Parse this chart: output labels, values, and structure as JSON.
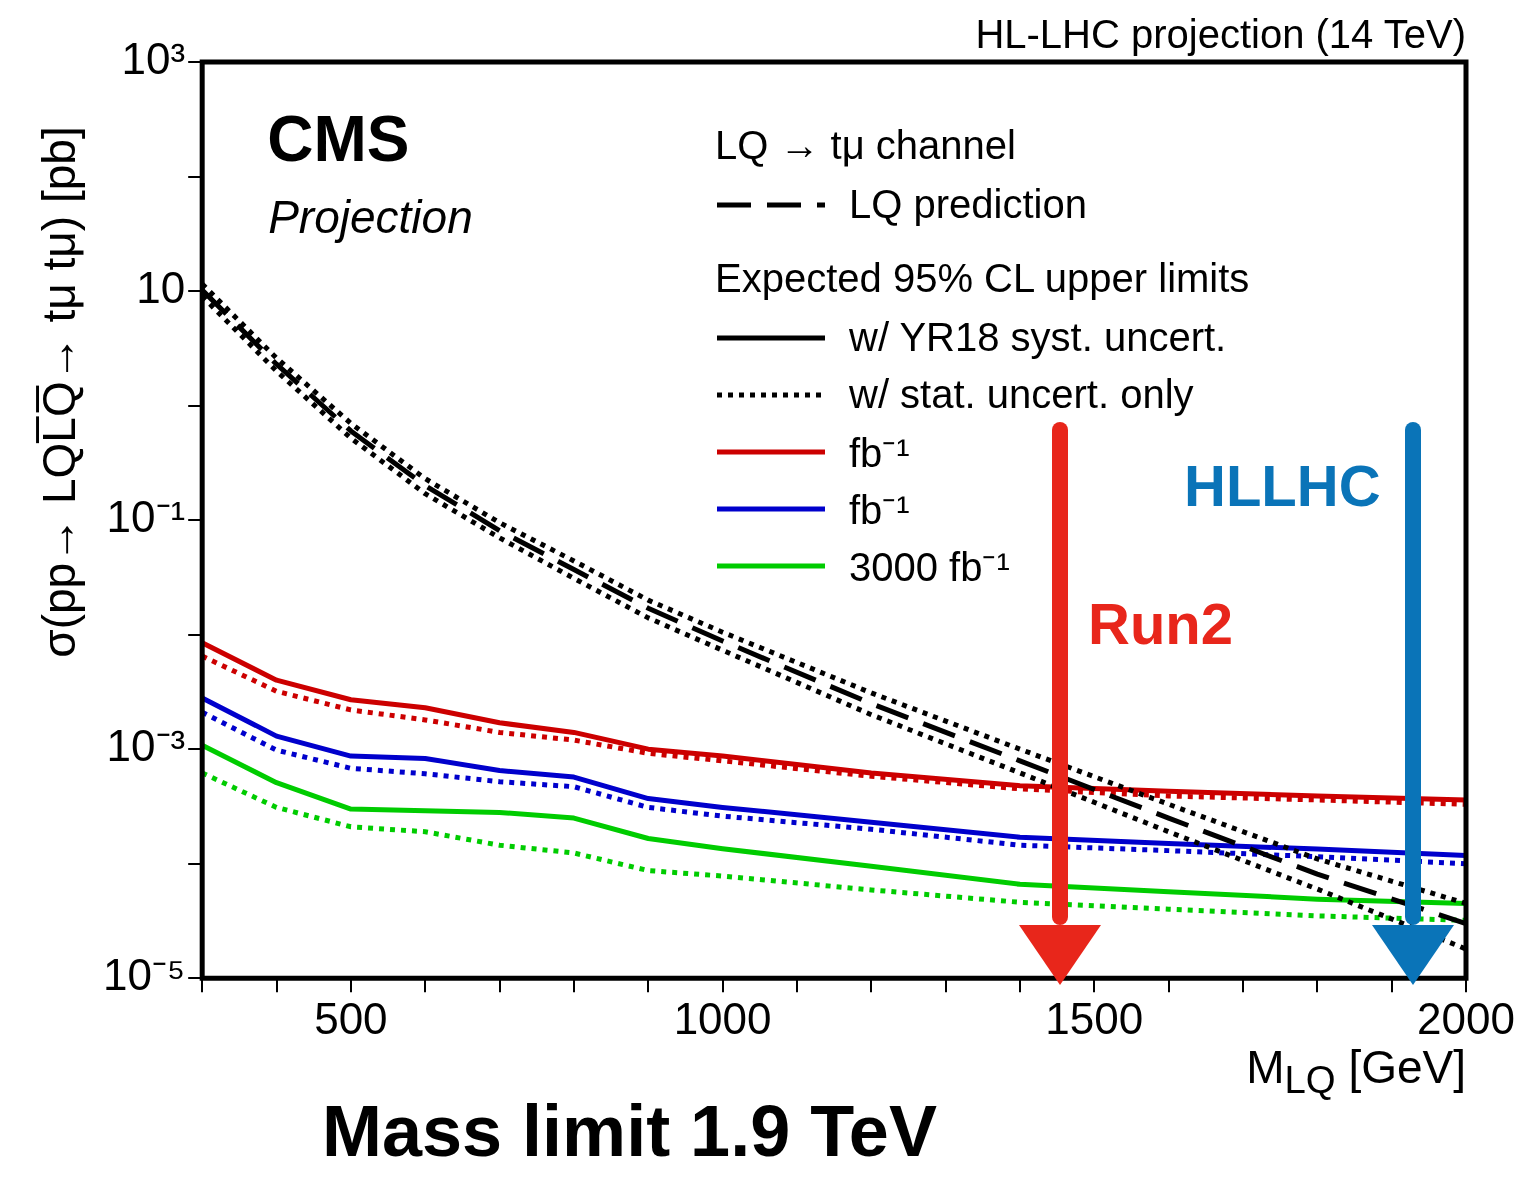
{
  "chart_data": {
    "type": "line",
    "title": "HL-LHC projection  (14 TeV)",
    "xlabel": "M$_{LQ}$ [GeV]",
    "ylabel": "σ(pp→ LQL̅Q̅→ tμ tμ) [pb]",
    "legend_title": "LQ → tμ channel",
    "legend": "top right",
    "grid": false,
    "log": "y",
    "marker": "none",
    "x": [
      300,
      400,
      500,
      600,
      700,
      800,
      900,
      1000,
      1200,
      1400,
      1600,
      1800,
      2000
    ],
    "xlim": [
      300,
      2000
    ],
    "xticks": [
      {
        "value": 300,
        "label": null
      },
      {
        "value": 400,
        "label": null
      },
      500,
      {
        "value": 600,
        "label": null
      },
      {
        "value": 700,
        "label": null
      },
      {
        "value": 800,
        "label": null
      },
      {
        "value": 900,
        "label": null
      },
      1000,
      {
        "value": 1100,
        "label": null
      },
      {
        "value": 1200,
        "label": null
      },
      {
        "value": 1300,
        "label": null
      },
      {
        "value": 1400,
        "label": null
      },
      1500,
      {
        "value": 1600,
        "label": null
      },
      {
        "value": 1700,
        "label": null
      },
      {
        "value": 1800,
        "label": null
      },
      {
        "value": 1900,
        "label": null
      },
      2000
    ],
    "ylim": [
      1e-05,
      1000
    ],
    "yticks": [
      {
        "value": 1e-05,
        "label": "10⁻⁵"
      },
      {
        "value": 0.0001,
        "label": null
      },
      {
        "value": 0.001,
        "label": "10⁻³"
      },
      {
        "value": 0.01,
        "label": null
      },
      {
        "value": 0.1,
        "label": "10⁻¹"
      },
      {
        "value": 1,
        "label": null
      },
      10,
      {
        "value": 100,
        "label": null
      },
      {
        "value": 1000,
        "label": "10³"
      }
    ],
    "series": [
      {
        "name": "LQ prediction",
        "color": "#000000",
        "line_style": "dashed",
        "values": [
          10.2,
          2.3,
          0.6,
          0.2,
          0.081,
          0.037,
          0.017,
          0.0088,
          0.0025,
          0.00079,
          0.00025,
          8.1e-05,
          3e-05
        ]
      },
      {
        "color": "#000000",
        "line_style": "dotted",
        "values": [
          11.5,
          2.6,
          0.7,
          0.23,
          0.095,
          0.044,
          0.02,
          0.0105,
          0.0031,
          0.001,
          0.00033,
          0.00011,
          4.5e-05
        ]
      },
      {
        "color": "#000000",
        "line_style": "dotted",
        "values": [
          9,
          2.0,
          0.52,
          0.17,
          0.07,
          0.031,
          0.014,
          0.0073,
          0.002,
          0.00062,
          0.00019,
          6e-05,
          1.8e-05
        ]
      },
      {
        "name": "w/ YR18 syst. uncert.",
        "color": "#000000",
        "line_style": "solid",
        "values": [
          null,
          null,
          null,
          null,
          null,
          null,
          null,
          null,
          null,
          null,
          null,
          null,
          null
        ]
      },
      {
        "name": "w/ stat. uncert. only",
        "color": "#000000",
        "line_style": "dotted",
        "values": [
          null,
          null,
          null,
          null,
          null,
          null,
          null,
          null,
          null,
          null,
          null,
          null,
          null
        ]
      },
      {
        "name": "fb⁻¹",
        "color": "#cc0000",
        "line_style": "solid",
        "values": [
          0.0085,
          0.004,
          0.0027,
          0.0023,
          0.0017,
          0.0014,
          0.001,
          0.00087,
          0.00062,
          0.00048,
          0.00043,
          0.00039,
          0.00036
        ]
      },
      {
        "color": "#cc0000",
        "line_style": "dotted",
        "values": [
          0.0065,
          0.0032,
          0.0022,
          0.0018,
          0.0014,
          0.0012,
          0.00092,
          0.00079,
          0.00058,
          0.00045,
          0.00039,
          0.00036,
          0.00033
        ]
      },
      {
        "name": "fb⁻¹",
        "color": "#0000cc",
        "line_style": "solid",
        "values": [
          0.0028,
          0.0013,
          0.00087,
          0.00083,
          0.00065,
          0.00057,
          0.00037,
          0.00031,
          0.00023,
          0.00017,
          0.00015,
          0.000134,
          0.000118
        ]
      },
      {
        "color": "#0000cc",
        "line_style": "dotted",
        "values": [
          0.0021,
          0.00098,
          0.00068,
          0.00061,
          0.00052,
          0.00047,
          0.00031,
          0.00026,
          0.0002,
          0.000145,
          0.00013,
          0.000115,
          0.0001
        ]
      },
      {
        "name": "3000 fb⁻¹",
        "color": "#00cc00",
        "line_style": "solid",
        "values": [
          0.00108,
          0.00051,
          0.0003,
          0.00029,
          0.00028,
          0.00025,
          0.000166,
          0.000135,
          9.5e-05,
          6.6e-05,
          5.7e-05,
          4.9e-05,
          4.5e-05
        ]
      },
      {
        "color": "#00cc00",
        "line_style": "dotted",
        "values": [
          0.00062,
          0.00031,
          0.00021,
          0.00019,
          0.000145,
          0.000124,
          8.7e-05,
          7.8e-05,
          5.9e-05,
          4.6e-05,
          4e-05,
          3.5e-05,
          3.2e-05
        ]
      }
    ],
    "annotations": [
      "CMS",
      "Projection",
      "Expected 95% CL upper limits",
      "Mass limit 1.9 TeV",
      "Run2",
      "HLLHC"
    ]
  }
}
